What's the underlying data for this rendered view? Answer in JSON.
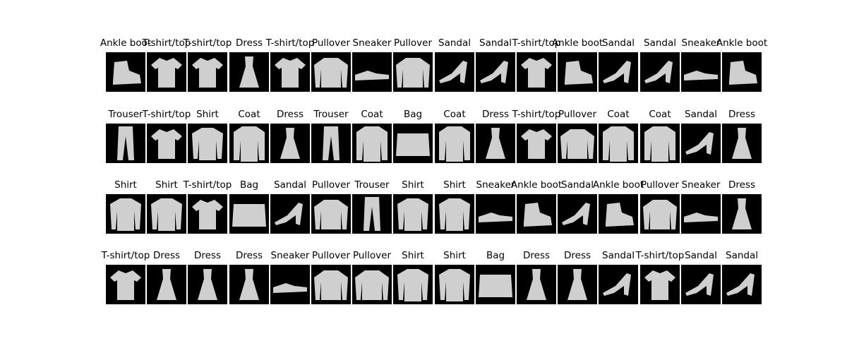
{
  "rows": [
    [
      "Ankle boot",
      "T-shirt/top",
      "T-shirt/top",
      "Dress",
      "T-shirt/top",
      "Pullover",
      "Sneaker",
      "Pullover",
      "Sandal",
      "Sandal",
      "T-shirt/top",
      "Ankle boot",
      "Sandal",
      "Sandal",
      "Sneaker",
      "Ankle boot"
    ],
    [
      "Trouser",
      "T-shirt/top",
      "Shirt",
      "Coat",
      "Dress",
      "Trouser",
      "Coat",
      "Bag",
      "Coat",
      "Dress",
      "T-shirt/top",
      "Pullover",
      "Coat",
      "Coat",
      "Sandal",
      "Dress"
    ],
    [
      "Shirt",
      "Shirt",
      "T-shirt/top",
      "Bag",
      "Sandal",
      "Pullover",
      "Trouser",
      "Shirt",
      "Shirt",
      "Sneaker",
      "Ankle boot",
      "Sandal",
      "Ankle boot",
      "Pullover",
      "Sneaker",
      "Dress"
    ],
    [
      "T-shirt/top",
      "Dress",
      "Dress",
      "Dress",
      "Sneaker",
      "Pullover",
      "Pullover",
      "Shirt",
      "Shirt",
      "Bag",
      "Dress",
      "Dress",
      "Sandal",
      "T-shirt/top",
      "Sandal",
      "Sandal"
    ]
  ],
  "colors": {
    "background": "#ffffff",
    "tile": "#000000",
    "garment": "#cfcfcf"
  }
}
